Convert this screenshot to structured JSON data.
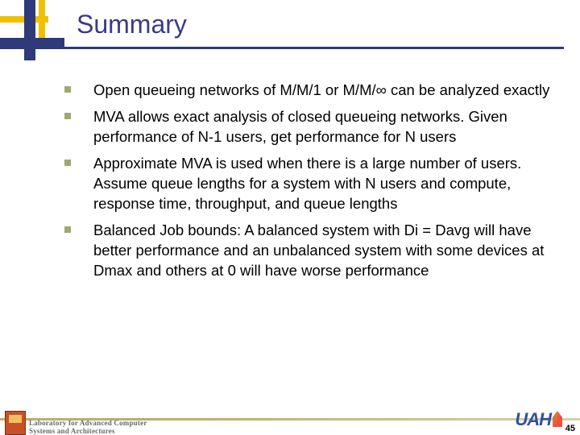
{
  "title": "Summary",
  "title_color": "#3a3a8a",
  "title_fontsize": 32,
  "underline_color": "#2e3a7a",
  "accent_yellow": "#f0c000",
  "accent_navy": "#2e3a7a",
  "bullet_marker_color": "#a0a870",
  "body_fontsize": 18.5,
  "bullets": [
    "Open queueing networks of M/M/1 or M/M/∞ can be analyzed exactly",
    "MVA allows exact analysis of closed queueing networks. Given performance of N-1 users, get performance for N users",
    "Approximate MVA is used when there is a large number of users. Assume queue lengths for a system with N users and compute, response time, throughput, and queue lengths",
    "Balanced Job bounds: A balanced system with Di = Davg will have better performance and an unbalanced system with some devices at Dmax and others at 0 will have worse performance"
  ],
  "footer": {
    "lab_line1": "Laboratory for Advanced Computer",
    "lab_line2": "Systems and Architectures",
    "uah": "UAH",
    "page_number": "45"
  },
  "background_color": "#ffffff"
}
